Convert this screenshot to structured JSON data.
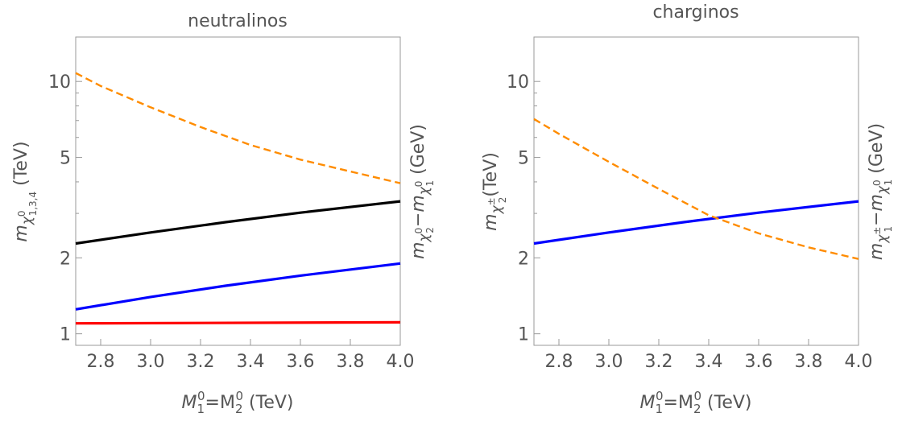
{
  "chart_data": [
    {
      "type": "line",
      "title": "neutralinos",
      "x_domain": [
        2.7,
        4.0
      ],
      "x_ticks": [
        "2.8",
        "3.0",
        "3.2",
        "3.4",
        "3.6",
        "3.8",
        "4.0"
      ],
      "y_log_domain": [
        0.9,
        15
      ],
      "y_ticks": [
        "1",
        "2",
        "5",
        "10"
      ],
      "xlabel": {
        "main": "M",
        "s1": "1",
        "p1": "0",
        "eq": "=M",
        "s2": "2",
        "p2": "0",
        "unit": " (TeV)"
      },
      "ylabel_left": {
        "main": "m",
        "sub": "χ",
        "subsup": "0",
        "subsub": "1,3,4",
        "unit": " (TeV)"
      },
      "ylabel_right": {
        "m1": "m",
        "a": "χ",
        "asup": "0",
        "asub": "2",
        "minus": "−m",
        "b": "χ",
        "bsup": "0",
        "bsub": "1",
        "unit": " (GeV)"
      },
      "series": [
        {
          "color": "#000000",
          "dash": false,
          "x": [
            2.7,
            3.0,
            3.3,
            3.6,
            4.0
          ],
          "y": [
            2.28,
            2.52,
            2.77,
            3.02,
            3.35
          ]
        },
        {
          "color": "#0000ff",
          "dash": false,
          "x": [
            2.7,
            3.0,
            3.3,
            3.6,
            4.0
          ],
          "y": [
            1.25,
            1.4,
            1.55,
            1.7,
            1.9
          ]
        },
        {
          "color": "#ff0000",
          "dash": false,
          "x": [
            2.7,
            4.0
          ],
          "y": [
            1.1,
            1.11
          ]
        },
        {
          "color": "#ff8c00",
          "dash": true,
          "x": [
            2.7,
            2.8,
            3.0,
            3.2,
            3.4,
            3.6,
            3.8,
            4.0
          ],
          "y": [
            10.8,
            9.6,
            7.9,
            6.6,
            5.6,
            4.9,
            4.4,
            3.95
          ]
        }
      ]
    },
    {
      "type": "line",
      "title": "charginos",
      "x_domain": [
        2.7,
        4.0
      ],
      "x_ticks": [
        "2.8",
        "3.0",
        "3.2",
        "3.4",
        "3.6",
        "3.8",
        "4.0"
      ],
      "y_log_domain": [
        0.9,
        15
      ],
      "y_ticks": [
        "1",
        "2",
        "5",
        "10"
      ],
      "xlabel": {
        "main": "M",
        "s1": "1",
        "p1": "0",
        "eq": "=M",
        "s2": "2",
        "p2": "0",
        "unit": " (TeV)"
      },
      "ylabel_left": {
        "main": "m",
        "sub": "χ",
        "subsup": "±",
        "subsub": "2",
        "unit": "(TeV)"
      },
      "ylabel_right": {
        "m1": "m",
        "a": "χ",
        "asup": "±",
        "asub": "1",
        "minus": "−m",
        "b": "χ",
        "bsup": "0",
        "bsub": "1",
        "unit": " (GeV)"
      },
      "series": [
        {
          "color": "#0000ff",
          "dash": false,
          "x": [
            2.7,
            3.0,
            3.3,
            3.6,
            4.0
          ],
          "y": [
            2.28,
            2.52,
            2.77,
            3.02,
            3.35
          ]
        },
        {
          "color": "#ff8c00",
          "dash": true,
          "x": [
            2.7,
            2.8,
            3.0,
            3.2,
            3.4,
            3.6,
            3.8,
            4.0
          ],
          "y": [
            7.1,
            6.2,
            4.8,
            3.75,
            2.95,
            2.5,
            2.2,
            1.98
          ]
        }
      ]
    }
  ]
}
